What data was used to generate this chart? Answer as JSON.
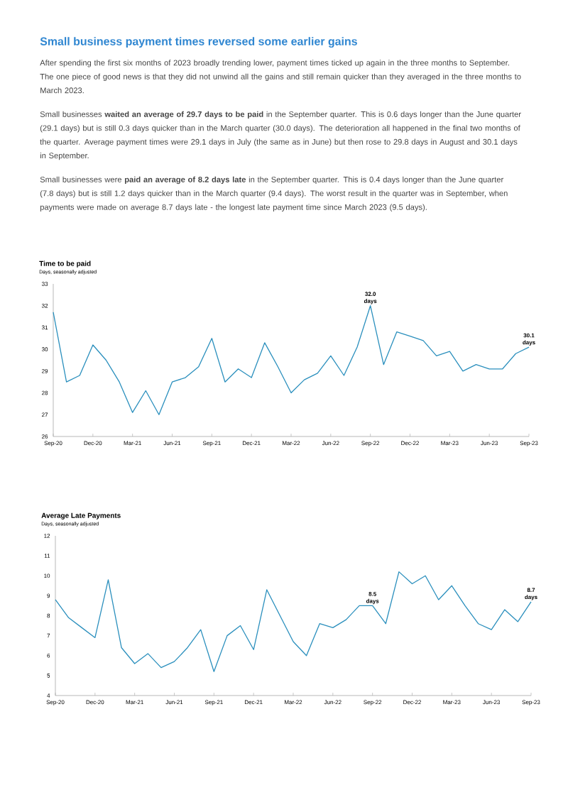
{
  "chart_data": [
    {
      "type": "other",
      "title": "Small business payment times reversed some earlier gains",
      "annotations": [
        "After spending the first six months of 2023 broadly trending lower, payment times ticked up again in the three months to September. The one piece of good news is that they did not unwind all the gains and still remain quicker than they averaged in the three months to March 2023.",
        "Small businesses **waited an average of 29.7 days to be paid** in the September quarter. This is 0.6 days longer than the June quarter (29.1 days) but is still 0.3 days quicker than in the March quarter (30.0 days). The deterioration all happened in the final two months of the quarter.  Average payment times were 29.1 days in July (the same as in June) but then rose to 29.8 days in August and 30.1 days in September.",
        "Small businesses were **paid an average of 8.2 days late** in the September quarter. This is 0.4 days longer than the June quarter (7.8 days) but is still 1.2 days quicker than in the March quarter (9.4 days). The worst result in the quarter was in September, when payments were made on average 8.7 days late - the longest late payment time since March 2023 (9.5 days)."
      ]
    },
    {
      "type": "line",
      "title": "Time to be paid",
      "subtitle": "Days, seasonally adjusted",
      "color": "#2a8fbd",
      "categories": [
        "Sep-20",
        null,
        null,
        "Dec-20",
        null,
        null,
        "Mar-21",
        null,
        null,
        "Jun-21",
        null,
        null,
        "Sep-21",
        null,
        null,
        "Dec-21",
        null,
        null,
        "Mar-22",
        null,
        null,
        "Jun-22",
        null,
        null,
        "Sep-22",
        null,
        null,
        "Dec-22",
        null,
        null,
        "Mar-23",
        null,
        null,
        "Jun-23",
        null,
        null,
        "Sep-23"
      ],
      "values": [
        31.7,
        28.5,
        28.8,
        30.2,
        29.5,
        28.5,
        27.1,
        28.1,
        27.0,
        28.5,
        28.7,
        29.2,
        30.5,
        28.5,
        29.1,
        28.7,
        30.3,
        29.2,
        28.0,
        28.6,
        28.9,
        29.7,
        28.8,
        30.1,
        32.0,
        29.3,
        30.8,
        30.6,
        30.4,
        29.7,
        29.9,
        29.0,
        29.3,
        29.1,
        29.1,
        29.8,
        30.1
      ],
      "ylim": [
        26,
        33
      ],
      "yticks": [
        26,
        27,
        28,
        29,
        30,
        31,
        32,
        33
      ],
      "annotations": [
        {
          "text": "32.0 days",
          "x": "Sep-22",
          "y": 32.0
        },
        {
          "text": "30.1 days",
          "x": "Sep-23",
          "y": 30.1
        }
      ]
    },
    {
      "type": "line",
      "title": "Average Late Payments",
      "subtitle": "Days, seasonally adjusted",
      "color": "#2a8fbd",
      "categories": [
        "Sep-20",
        null,
        null,
        "Dec-20",
        null,
        null,
        "Mar-21",
        null,
        null,
        "Jun-21",
        null,
        null,
        "Sep-21",
        null,
        null,
        "Dec-21",
        null,
        null,
        "Mar-22",
        null,
        null,
        "Jun-22",
        null,
        null,
        "Sep-22",
        null,
        null,
        "Dec-22",
        null,
        null,
        "Mar-23",
        null,
        null,
        "Jun-23",
        null,
        null,
        "Sep-23"
      ],
      "values": [
        8.8,
        7.9,
        7.4,
        6.9,
        9.8,
        6.4,
        5.6,
        6.1,
        5.4,
        5.7,
        6.4,
        7.3,
        5.2,
        7.0,
        7.5,
        6.3,
        9.3,
        8.0,
        6.7,
        6.0,
        7.6,
        7.4,
        7.8,
        8.5,
        8.5,
        7.6,
        10.2,
        9.6,
        10.0,
        8.8,
        9.5,
        8.5,
        7.6,
        7.3,
        8.3,
        7.7,
        8.7
      ],
      "ylim": [
        4,
        12
      ],
      "yticks": [
        4,
        5,
        6,
        7,
        8,
        9,
        10,
        11,
        12
      ],
      "annotations": [
        {
          "text": "8.5 days",
          "x": "Sep-22",
          "y": 8.5
        },
        {
          "text": "8.7 days",
          "x": "Sep-23",
          "y": 8.7
        }
      ]
    }
  ]
}
